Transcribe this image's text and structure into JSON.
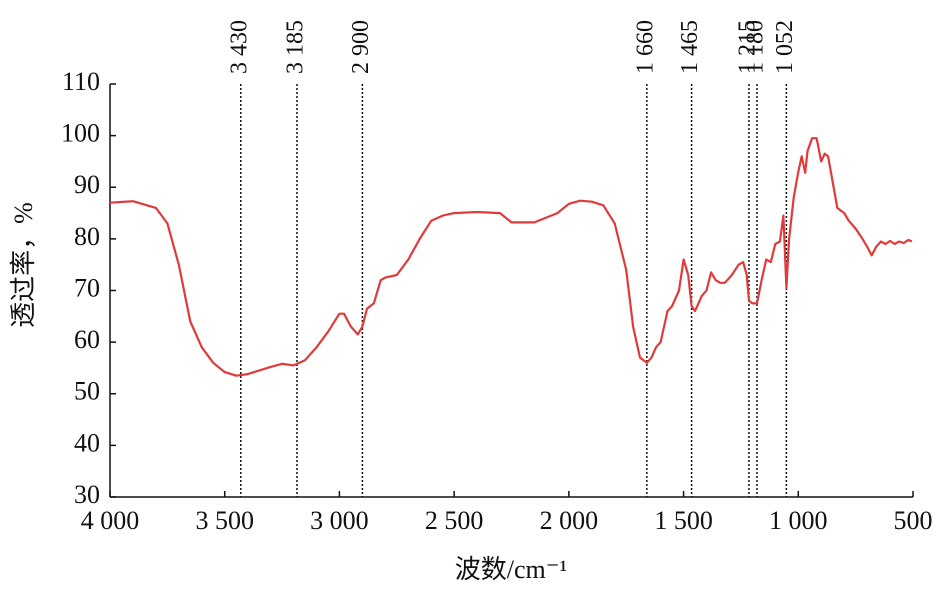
{
  "chart_data": {
    "type": "line",
    "y_label": "透过率，%",
    "x_label": "波数/cm⁻¹",
    "xlim": [
      4000,
      500
    ],
    "ylim": [
      30,
      110
    ],
    "xticks": [
      {
        "value": 4000,
        "label": "4 000"
      },
      {
        "value": 3500,
        "label": "3 500"
      },
      {
        "value": 3000,
        "label": "3 000"
      },
      {
        "value": 2500,
        "label": "2 500"
      },
      {
        "value": 2000,
        "label": "2 000"
      },
      {
        "value": 1500,
        "label": "1 500"
      },
      {
        "value": 1000,
        "label": "1 000"
      },
      500
    ],
    "yticks": [
      30,
      40,
      50,
      60,
      70,
      80,
      90,
      100,
      110
    ],
    "annotations": [
      {
        "value": 3430,
        "label": "3 430"
      },
      {
        "value": 3185,
        "label": "3 185"
      },
      {
        "value": 2900,
        "label": "2 900"
      },
      {
        "value": 1660,
        "label": "1 660"
      },
      {
        "value": 1465,
        "label": "1 465"
      },
      {
        "value": 1215,
        "label": "1 215"
      },
      {
        "value": 1180,
        "label": "1 180"
      },
      {
        "value": 1052,
        "label": "1 052"
      }
    ],
    "series": [
      {
        "color": "#e03a3a",
        "x": [
          4000,
          3900,
          3800,
          3750,
          3700,
          3650,
          3600,
          3550,
          3500,
          3450,
          3400,
          3300,
          3250,
          3200,
          3150,
          3100,
          3050,
          3000,
          2980,
          2950,
          2920,
          2900,
          2880,
          2850,
          2820,
          2800,
          2750,
          2700,
          2650,
          2600,
          2550,
          2500,
          2400,
          2300,
          2250,
          2150,
          2050,
          2000,
          1950,
          1900,
          1850,
          1800,
          1750,
          1720,
          1690,
          1660,
          1640,
          1620,
          1600,
          1570,
          1550,
          1520,
          1500,
          1480,
          1465,
          1450,
          1420,
          1400,
          1380,
          1360,
          1340,
          1320,
          1290,
          1260,
          1240,
          1225,
          1215,
          1200,
          1180,
          1160,
          1140,
          1120,
          1100,
          1080,
          1065,
          1052,
          1040,
          1020,
          1000,
          985,
          970,
          960,
          940,
          920,
          900,
          885,
          870,
          850,
          830,
          800,
          780,
          750,
          720,
          700,
          680,
          660,
          640,
          620,
          600,
          580,
          560,
          540,
          520,
          505
        ],
        "values": [
          87,
          87.3,
          86,
          83,
          75,
          64,
          59,
          56,
          54.2,
          53.5,
          53.8,
          55.2,
          55.8,
          55.5,
          56.5,
          59,
          62,
          65.5,
          65.5,
          63,
          61.5,
          63,
          66.5,
          67.5,
          72,
          72.5,
          73,
          76,
          80,
          83.5,
          84.5,
          85,
          85.2,
          85,
          83.2,
          83.2,
          85,
          86.8,
          87.4,
          87.2,
          86.5,
          83,
          74,
          63,
          57,
          56,
          57,
          59,
          60,
          66,
          67,
          70,
          76,
          73,
          67,
          66,
          69,
          70,
          73.5,
          72,
          71.5,
          71.5,
          73,
          75,
          75.5,
          73,
          68,
          67.5,
          67.5,
          72,
          76,
          75.5,
          79,
          79.5,
          84.5,
          70.5,
          80,
          88,
          93,
          96,
          92.8,
          97,
          99.5,
          99.5,
          95,
          96.5,
          96,
          91,
          86,
          85,
          83.5,
          82,
          80,
          78.5,
          76.8,
          78.5,
          79.5,
          79,
          79.6,
          79,
          79.5,
          79.2,
          79.8,
          79.5
        ]
      }
    ]
  }
}
